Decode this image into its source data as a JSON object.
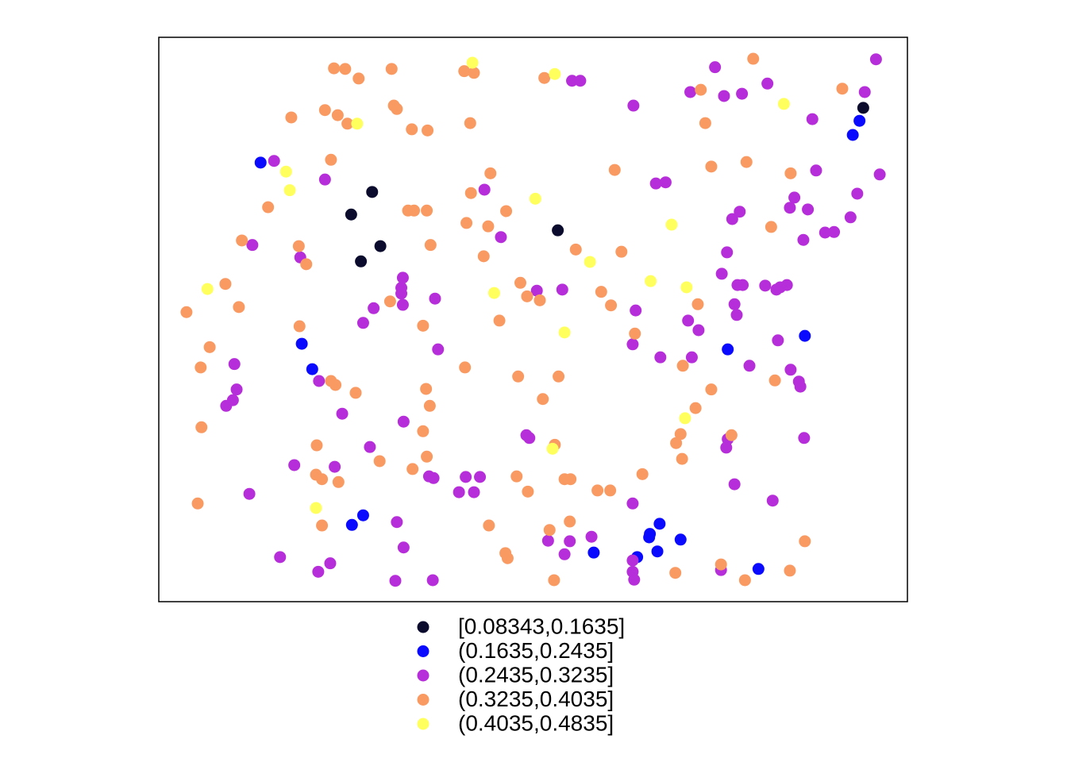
{
  "chart_data": {
    "type": "scatter",
    "xlim": [
      0,
      100
    ],
    "ylim": [
      0,
      100
    ],
    "grid": false,
    "legend": "bottom",
    "series": [
      {
        "name": "[0.08343,0.1635]",
        "color": "#0b0b2e",
        "x": [
          94.1,
          28.5,
          25.7,
          53.3,
          29.6,
          27.0
        ],
        "values": [
          87.5,
          72.6,
          68.6,
          65.8,
          63.0,
          60.3
        ]
      },
      {
        "name": "(0.1635,0.2435]",
        "color": "#0a0aff",
        "x": [
          93.6,
          92.7,
          13.6,
          19.1,
          20.5,
          76.0,
          86.3,
          27.3,
          25.8,
          66.9,
          65.6,
          65.5,
          69.7,
          58.1,
          66.6,
          63.9,
          80.1
        ],
        "values": [
          85.2,
          82.7,
          77.8,
          45.7,
          41.2,
          44.7,
          47.1,
          15.3,
          13.6,
          13.8,
          12.0,
          11.4,
          11.0,
          8.7,
          8.9,
          7.9,
          5.8
        ]
      },
      {
        "name": "(0.2435,0.3235]",
        "color": "#b62ed9",
        "x": [
          95.8,
          74.3,
          55.2,
          56.3,
          81.3,
          94.3,
          71.0,
          75.5,
          77.9,
          63.4,
          87.3,
          15.4,
          22.2,
          87.8,
          96.3,
          66.4,
          67.7,
          43.5,
          93.3,
          84.9,
          84.3,
          86.7,
          77.6,
          76.6,
          92.4,
          45.7,
          89.0,
          90.2,
          86.1,
          12.5,
          18.9,
          75.9,
          75.2,
          32.6,
          32.4,
          32.4,
          50.5,
          53.9,
          77.3,
          78.0,
          81.0,
          83.0,
          83.9,
          82.5,
          36.9,
          28.7,
          32.6,
          76.9,
          63.7,
          77.2,
          27.3,
          70.7,
          72.1,
          63.3,
          37.3,
          82.7,
          67.0,
          71.2,
          10.1,
          78.9,
          84.4,
          21.4,
          85.5,
          85.7,
          10.4,
          9.9,
          9.0,
          24.5,
          32.7,
          49.1,
          49.5,
          76.0,
          28.2,
          86.2,
          75.8,
          18.1,
          23.5,
          36.1,
          36.7,
          41.0,
          42.9,
          76.9,
          40.1,
          42.1,
          12.1,
          63.3,
          82.0,
          31.8,
          57.8,
          52.0,
          54.9,
          16.2,
          32.7,
          54.2,
          63.3,
          22.9,
          21.3,
          63.3,
          63.5,
          75.1,
          31.6,
          36.6
        ],
        "values": [
          96.1,
          94.7,
          92.3,
          92.3,
          91.8,
          90.3,
          90.3,
          89.6,
          90.0,
          87.9,
          85.5,
          78.1,
          74.8,
          76.4,
          75.7,
          74.1,
          74.3,
          73.0,
          72.3,
          71.6,
          69.8,
          69.5,
          69.1,
          67.8,
          68.1,
          64.6,
          65.4,
          65.5,
          64.1,
          63.2,
          61.0,
          61.9,
          58.1,
          57.4,
          55.6,
          54.6,
          55.1,
          55.3,
          56.1,
          56.1,
          56.0,
          55.7,
          56.1,
          55.3,
          53.7,
          52.0,
          52.6,
          52.7,
          51.6,
          50.8,
          49.4,
          49.8,
          48.1,
          45.6,
          44.7,
          46.3,
          43.3,
          43.3,
          42.1,
          41.8,
          41.1,
          39.1,
          39.0,
          38.1,
          37.6,
          35.7,
          34.7,
          33.3,
          31.9,
          29.5,
          29.0,
          28.8,
          27.4,
          29.0,
          27.3,
          24.2,
          23.9,
          22.2,
          21.9,
          22.1,
          22.1,
          20.8,
          19.4,
          19.4,
          19.1,
          17.4,
          17.9,
          14.1,
          11.5,
          10.8,
          10.7,
          7.9,
          9.6,
          8.4,
          7.3,
          6.8,
          5.3,
          5.3,
          3.9,
          5.6,
          3.7,
          3.8
        ]
      },
      {
        "name": "(0.3235,0.4035]",
        "color": "#f99a62",
        "x": [
          79.4,
          23.4,
          24.9,
          31.1,
          26.7,
          40.8,
          42.1,
          51.5,
          91.3,
          72.4,
          31.4,
          22.2,
          31.8,
          23.9,
          17.7,
          25.2,
          33.8,
          35.9,
          41.6,
          73.0,
          23.0,
          78.5,
          73.8,
          60.9,
          44.3,
          84.4,
          41.7,
          46.4,
          14.6,
          33.3,
          34.1,
          35.8,
          41.1,
          44.0,
          81.8,
          11.1,
          18.7,
          36.3,
          55.7,
          61.8,
          43.4,
          19.7,
          48.3,
          8.9,
          49.2,
          59.1,
          50.9,
          30.9,
          10.7,
          3.7,
          60.4,
          72.0,
          45.5,
          35.3,
          18.8,
          63.6,
          6.8,
          5.6,
          40.9,
          70.0,
          48.0,
          53.4,
          82.3,
          23.0,
          23.6,
          73.8,
          26.3,
          35.7,
          51.3,
          36.2,
          71.7,
          5.7,
          35.3,
          69.7,
          76.5,
          69.1,
          52.9,
          21.1,
          69.9,
          29.5,
          35.8,
          33.9,
          21.0,
          21.8,
          24.0,
          47.8,
          64.6,
          54.2,
          55.0,
          58.6,
          60.3,
          49.3,
          5.2,
          21.8,
          44.1,
          54.9,
          52.2,
          86.3,
          46.3,
          46.6,
          75.1,
          69.0,
          84.3,
          52.8,
          78.3
        ],
        "values": [
          96.2,
          94.5,
          94.4,
          94.4,
          92.7,
          94.0,
          93.7,
          92.8,
          90.9,
          90.7,
          87.9,
          87.1,
          87.3,
          86.2,
          85.8,
          84.7,
          83.7,
          83.5,
          84.8,
          84.8,
          78.3,
          77.9,
          77.1,
          76.5,
          75.9,
          75.9,
          72.4,
          69.2,
          69.9,
          69.3,
          69.3,
          69.3,
          67.1,
          66.5,
          66.4,
          64.0,
          63.0,
          63.2,
          62.4,
          62.0,
          61.2,
          59.8,
          56.5,
          56.3,
          54.1,
          54.9,
          53.4,
          53.2,
          52.2,
          51.3,
          52.5,
          52.7,
          49.8,
          48.9,
          48.8,
          47.5,
          45.1,
          41.5,
          41.5,
          41.8,
          39.9,
          39.9,
          39.2,
          39.1,
          38.4,
          37.6,
          37.0,
          37.7,
          35.9,
          34.7,
          34.3,
          30.9,
          30.2,
          29.7,
          29.5,
          28.1,
          27.8,
          27.7,
          25.3,
          24.9,
          25.7,
          23.5,
          22.5,
          21.7,
          21.2,
          22.2,
          22.6,
          21.7,
          21.7,
          19.7,
          19.7,
          19.5,
          17.4,
          13.5,
          13.5,
          14.2,
          12.7,
          10.7,
          8.6,
          7.7,
          6.6,
          5.1,
          5.5,
          3.8,
          3.8
        ]
      },
      {
        "name": "(0.4035,0.4835]",
        "color": "#ffff5e",
        "x": [
          41.9,
          52.9,
          83.5,
          26.5,
          17.0,
          17.5,
          50.3,
          68.5,
          57.6,
          6.5,
          65.7,
          70.5,
          44.8,
          54.2,
          70.3,
          52.6,
          21.0
        ],
        "values": [
          95.5,
          93.5,
          88.2,
          84.7,
          76.2,
          72.9,
          71.4,
          66.8,
          60.2,
          55.4,
          56.8,
          55.7,
          54.7,
          47.7,
          32.5,
          27.1,
          16.6
        ]
      }
    ]
  }
}
